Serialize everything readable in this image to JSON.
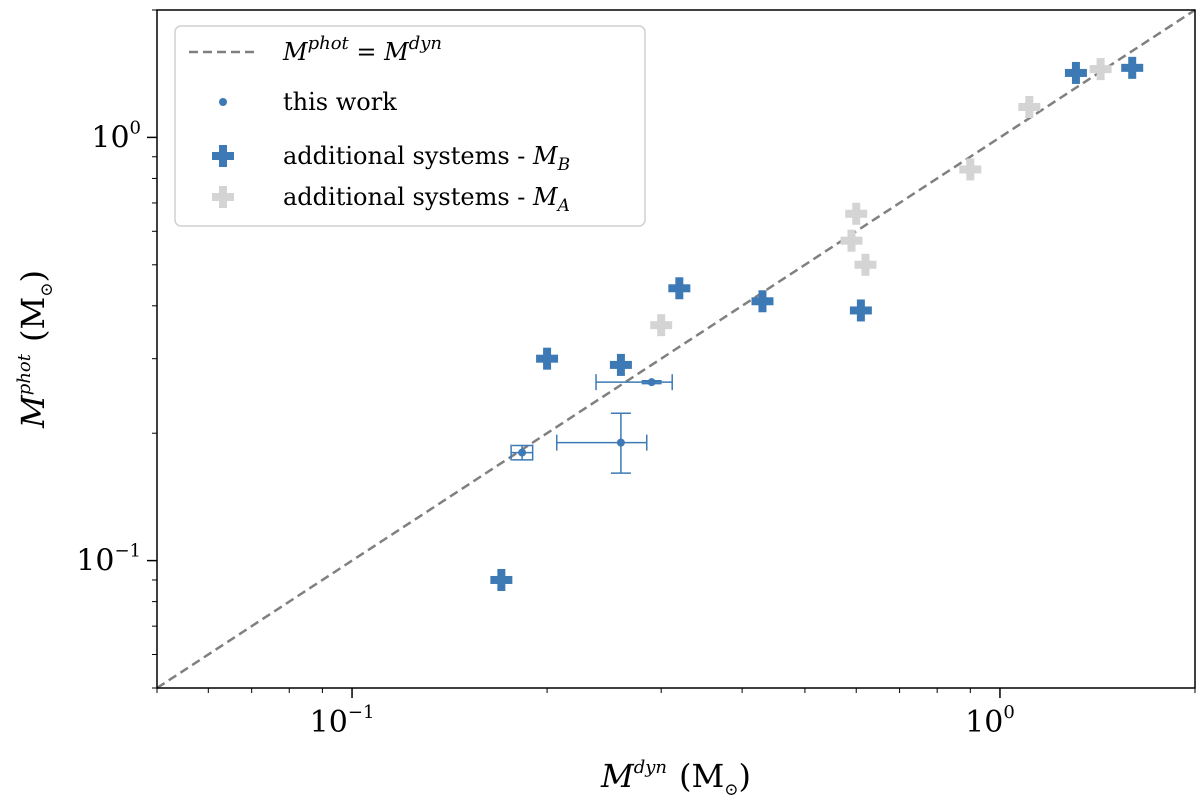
{
  "chart_data": {
    "type": "scatter",
    "xscale": "log",
    "yscale": "log",
    "xlim": [
      0.05,
      2.0
    ],
    "ylim": [
      0.05,
      2.0
    ],
    "xlabel": {
      "base": "M",
      "sup": "dyn",
      "unit": "(M",
      "unit_sub": "⊙",
      "unit_close": ")"
    },
    "ylabel": {
      "base": "M",
      "sup": "phot",
      "unit": "(M",
      "unit_sub": "⊙",
      "unit_close": ")"
    },
    "x_ticks": [
      {
        "value": 0.1,
        "base": "10",
        "exp": "−1"
      },
      {
        "value": 1.0,
        "base": "10",
        "exp": "0"
      }
    ],
    "y_ticks": [
      {
        "value": 0.1,
        "base": "10",
        "exp": "−1"
      },
      {
        "value": 1.0,
        "base": "10",
        "exp": "0"
      }
    ],
    "reference_line": {
      "name": "M^phot = M^dyn",
      "color": "#808080",
      "style": "dashed"
    },
    "legend": {
      "location": "top-left",
      "entries": [
        {
          "marker": "dashed-line",
          "color": "#808080",
          "base": "M",
          "sup": "phot",
          "mid": " = M",
          "sup2": "dyn"
        },
        {
          "marker": "dot",
          "color": "#3d7ab5",
          "text": "this work"
        },
        {
          "marker": "plus",
          "color": "#3d7ab5",
          "text": "additional systems - ",
          "sym": "M",
          "sub": "B"
        },
        {
          "marker": "plus",
          "color": "#d4d4d4",
          "text": "additional systems - ",
          "sym": "M",
          "sub": "A"
        }
      ]
    },
    "series": [
      {
        "name": "additional systems - M_A",
        "marker": "plus",
        "color": "#d4d4d4",
        "points": [
          {
            "x": 0.3,
            "y": 0.36
          },
          {
            "x": 0.6,
            "y": 0.66
          },
          {
            "x": 0.59,
            "y": 0.57
          },
          {
            "x": 0.62,
            "y": 0.5
          },
          {
            "x": 0.9,
            "y": 0.84
          },
          {
            "x": 1.11,
            "y": 1.18
          },
          {
            "x": 1.43,
            "y": 1.45
          }
        ]
      },
      {
        "name": "additional systems - M_B",
        "marker": "plus",
        "color": "#3d7ab5",
        "points": [
          {
            "x": 0.17,
            "y": 0.09
          },
          {
            "x": 0.2,
            "y": 0.3
          },
          {
            "x": 0.26,
            "y": 0.29
          },
          {
            "x": 0.32,
            "y": 0.44
          },
          {
            "x": 0.43,
            "y": 0.41
          },
          {
            "x": 0.61,
            "y": 0.39
          },
          {
            "x": 1.31,
            "y": 1.42
          },
          {
            "x": 1.6,
            "y": 1.46
          }
        ]
      },
      {
        "name": "this work",
        "marker": "dot",
        "color": "#3d7ab5",
        "points": [
          {
            "x": 0.183,
            "y": 0.18,
            "xerr": [
              0.176,
              0.19
            ],
            "yerr": [
              0.173,
              0.187
            ]
          },
          {
            "x": 0.26,
            "y": 0.19,
            "xerr": [
              0.207,
              0.285
            ],
            "yerr": [
              0.161,
              0.223
            ]
          },
          {
            "x": 0.29,
            "y": 0.264,
            "xerr": [
              0.238,
              0.312
            ],
            "yerr": [
              0.262,
              0.266
            ]
          }
        ]
      }
    ]
  }
}
